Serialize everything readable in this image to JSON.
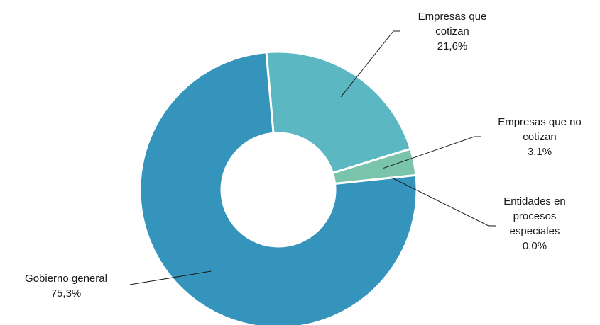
{
  "chart_data": {
    "type": "pie",
    "variant": "donut",
    "legend": "none",
    "categories": [
      "Empresas que cotizan",
      "Empresas que no cotizan",
      "Entidades en procesos especiales",
      "Gobierno general"
    ],
    "values": [
      21.6,
      3.1,
      0.0,
      75.3
    ],
    "value_labels": [
      "21,6%",
      "3,1%",
      "0,0%",
      "75,3%"
    ],
    "label_lines": [
      [
        "Empresas que",
        "cotizan",
        "21,6%"
      ],
      [
        "Empresas que no",
        "cotizan",
        "3,1%"
      ],
      [
        "Entidades en",
        "procesos",
        "especiales",
        "0,0%"
      ],
      [
        "Gobierno general",
        "75,3%"
      ]
    ],
    "colors": [
      "#5bb8c2",
      "#79c4aa",
      "#5a9fc0",
      "#3594bb"
    ]
  }
}
